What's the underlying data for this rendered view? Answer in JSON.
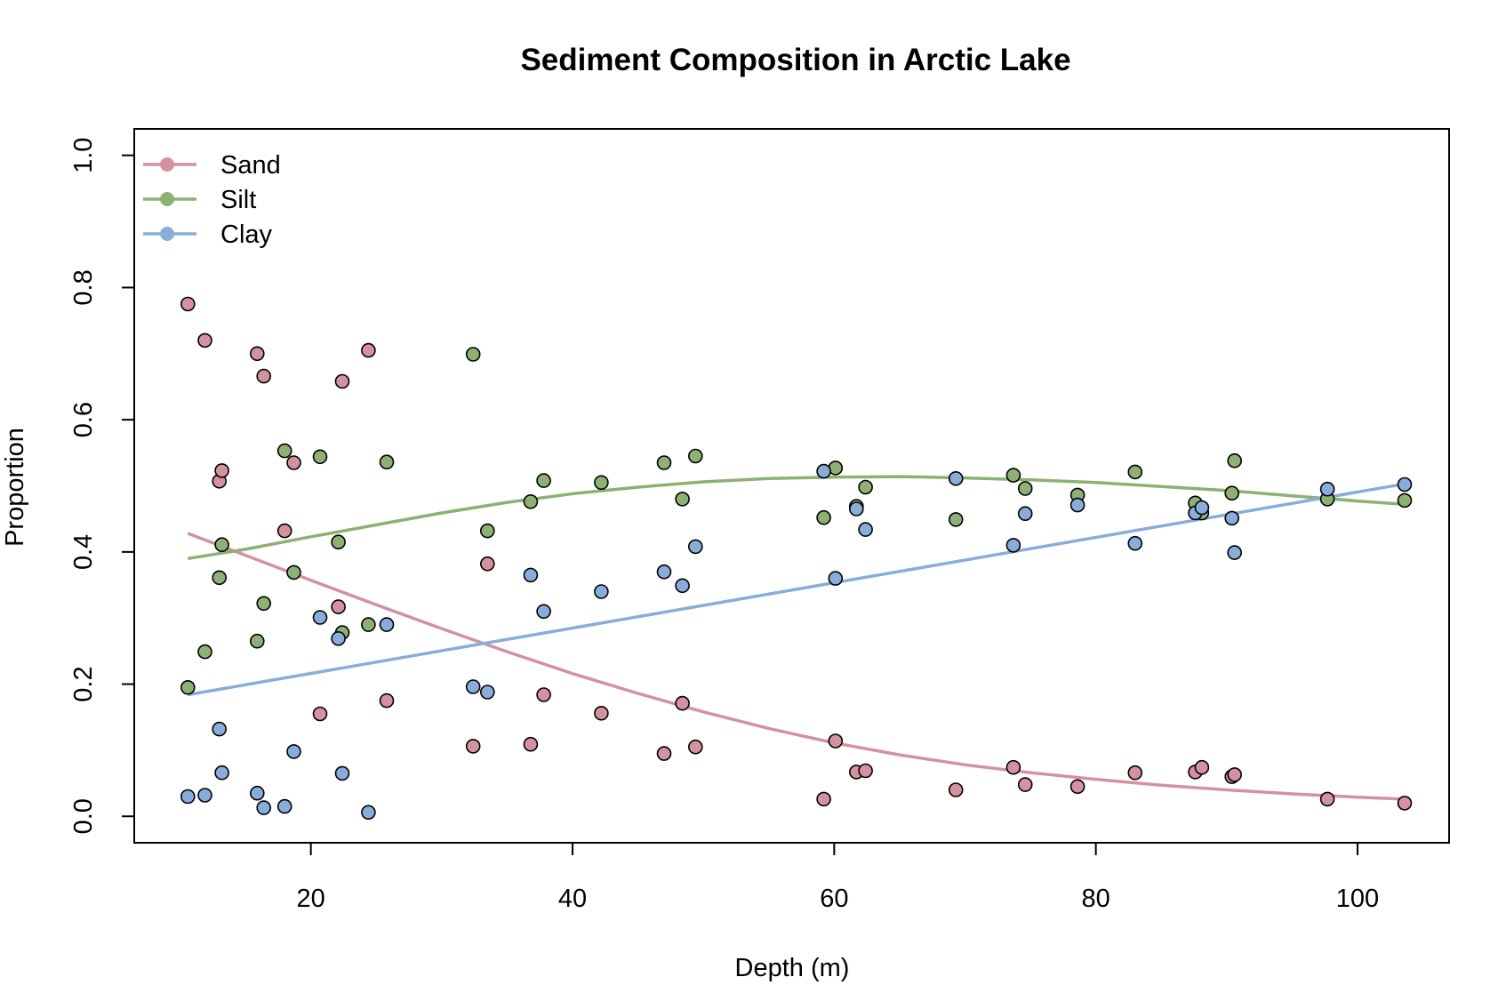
{
  "chart_data": {
    "type": "scatter",
    "title": "Sediment Composition in Arctic Lake",
    "xlabel": "Depth (m)",
    "ylabel": "Proportion",
    "xlim": [
      6.5,
      107
    ],
    "ylim": [
      -0.04,
      1.04
    ],
    "x_ticks": [
      20,
      40,
      60,
      80,
      100
    ],
    "y_ticks": [
      0.0,
      0.2,
      0.4,
      0.6,
      0.8,
      1.0
    ],
    "x_tick_labels": [
      "20",
      "40",
      "60",
      "80",
      "100"
    ],
    "y_tick_labels": [
      "0.0",
      "0.2",
      "0.4",
      "0.6",
      "0.8",
      "1.0"
    ],
    "grid": false,
    "legend_position": "top-left",
    "x": [
      10.6,
      11.9,
      13.0,
      13.2,
      15.9,
      16.4,
      18.0,
      18.7,
      20.7,
      22.1,
      22.4,
      24.4,
      25.8,
      32.4,
      33.5,
      36.8,
      37.8,
      42.2,
      47.0,
      48.4,
      49.4,
      59.2,
      60.1,
      61.7,
      62.4,
      69.3,
      73.7,
      74.6,
      78.6,
      83.0,
      87.6,
      88.1,
      90.4,
      90.6,
      97.7,
      103.6
    ],
    "series": [
      {
        "name": "Sand",
        "color": "#D4919F",
        "values": [
          0.775,
          0.72,
          0.507,
          0.523,
          0.7,
          0.666,
          0.432,
          0.535,
          0.155,
          0.317,
          0.658,
          0.705,
          0.175,
          0.106,
          0.382,
          0.109,
          0.184,
          0.156,
          0.095,
          0.171,
          0.105,
          0.026,
          0.114,
          0.067,
          0.069,
          0.04,
          0.074,
          0.048,
          0.045,
          0.066,
          0.067,
          0.074,
          0.06,
          0.063,
          0.026,
          0.02
        ],
        "trend": [
          [
            10.6,
            0.428
          ],
          [
            15,
            0.395
          ],
          [
            20,
            0.357
          ],
          [
            25,
            0.32
          ],
          [
            30,
            0.284
          ],
          [
            35,
            0.249
          ],
          [
            40,
            0.216
          ],
          [
            45,
            0.186
          ],
          [
            50,
            0.158
          ],
          [
            55,
            0.133
          ],
          [
            60,
            0.111
          ],
          [
            65,
            0.093
          ],
          [
            70,
            0.078
          ],
          [
            75,
            0.066
          ],
          [
            80,
            0.056
          ],
          [
            85,
            0.047
          ],
          [
            90,
            0.04
          ],
          [
            95,
            0.034
          ],
          [
            100,
            0.029
          ],
          [
            103.6,
            0.026
          ]
        ]
      },
      {
        "name": "Silt",
        "color": "#8DB174",
        "values": [
          0.195,
          0.249,
          0.361,
          0.411,
          0.265,
          0.322,
          0.553,
          0.369,
          0.544,
          0.415,
          0.278,
          0.29,
          0.536,
          0.699,
          0.432,
          0.476,
          0.508,
          0.505,
          0.535,
          0.48,
          0.545,
          0.452,
          0.527,
          0.469,
          0.498,
          0.449,
          0.516,
          0.496,
          0.486,
          0.521,
          0.474,
          0.459,
          0.489,
          0.538,
          0.48,
          0.478
        ],
        "trend": [
          [
            10.6,
            0.39
          ],
          [
            15,
            0.404
          ],
          [
            20,
            0.423
          ],
          [
            25,
            0.441
          ],
          [
            30,
            0.459
          ],
          [
            35,
            0.475
          ],
          [
            40,
            0.488
          ],
          [
            45,
            0.498
          ],
          [
            50,
            0.506
          ],
          [
            55,
            0.511
          ],
          [
            60,
            0.513
          ],
          [
            65,
            0.514
          ],
          [
            70,
            0.512
          ],
          [
            75,
            0.509
          ],
          [
            80,
            0.505
          ],
          [
            85,
            0.499
          ],
          [
            90,
            0.493
          ],
          [
            95,
            0.485
          ],
          [
            100,
            0.477
          ],
          [
            103.6,
            0.472
          ]
        ]
      },
      {
        "name": "Clay",
        "color": "#89ADDA",
        "values": [
          0.03,
          0.032,
          0.132,
          0.066,
          0.035,
          0.013,
          0.015,
          0.098,
          0.301,
          0.269,
          0.065,
          0.006,
          0.29,
          0.196,
          0.188,
          0.365,
          0.31,
          0.34,
          0.37,
          0.349,
          0.408,
          0.522,
          0.36,
          0.465,
          0.434,
          0.511,
          0.41,
          0.458,
          0.471,
          0.413,
          0.459,
          0.467,
          0.451,
          0.399,
          0.495,
          0.502
        ],
        "trend": [
          [
            10.6,
            0.184
          ],
          [
            103.6,
            0.503
          ]
        ]
      }
    ]
  }
}
